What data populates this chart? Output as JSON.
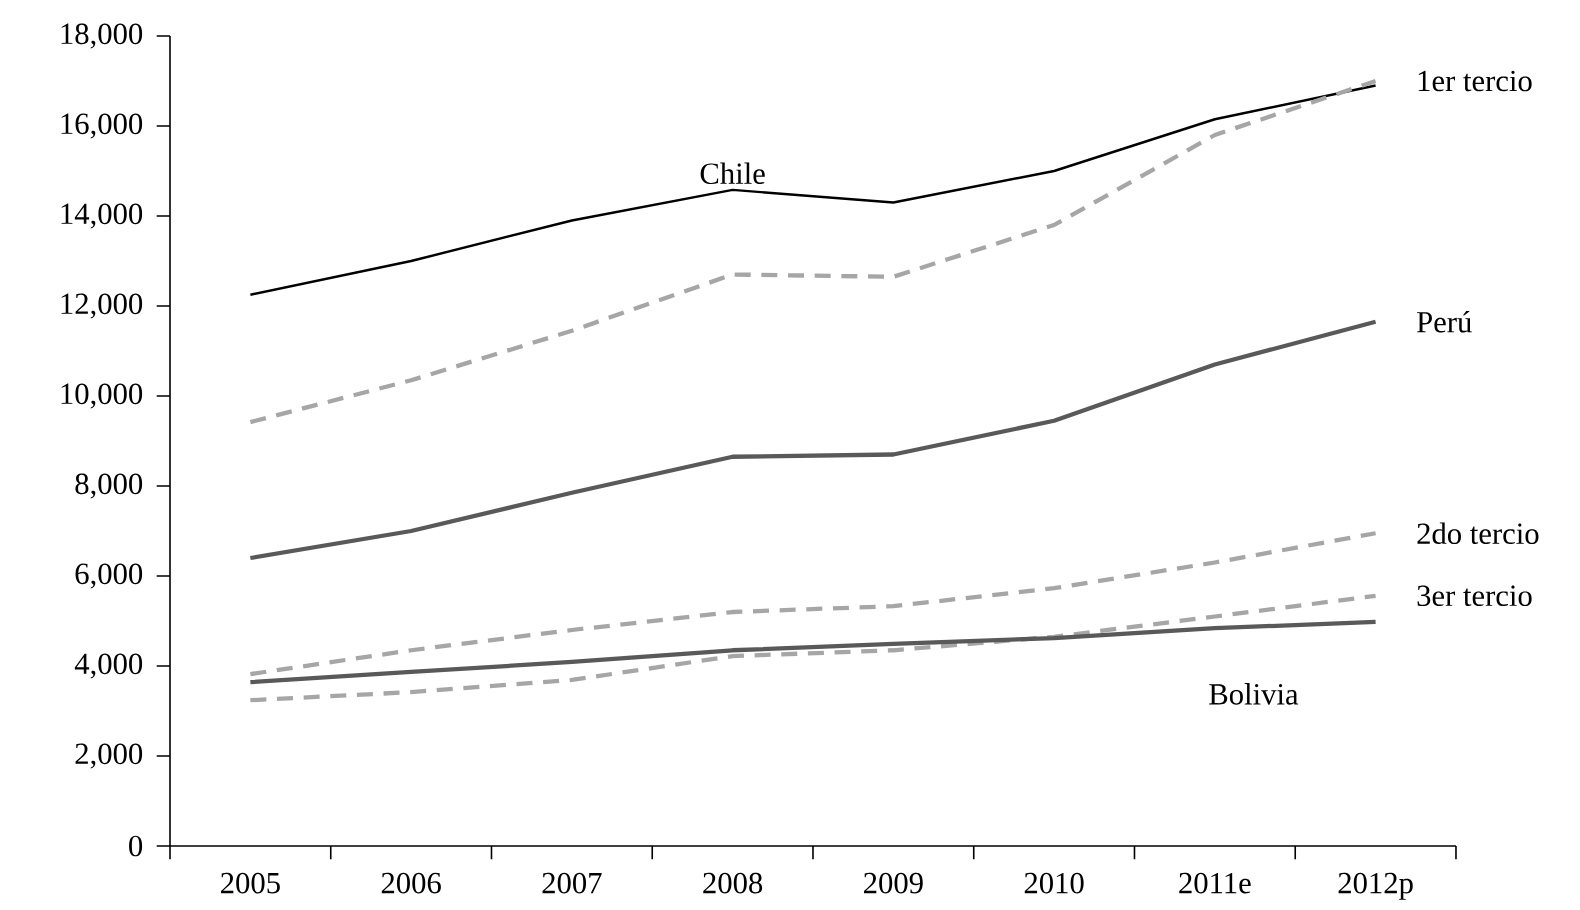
{
  "chart_data": {
    "type": "line",
    "categories": [
      "2005",
      "2006",
      "2007",
      "2008",
      "2009",
      "2010",
      "2011e",
      "2012p"
    ],
    "ylim": [
      0,
      18000
    ],
    "yticks": [
      0,
      {
        "value": 2000,
        "label": "2,000"
      },
      {
        "value": 4000,
        "label": "4,000"
      },
      {
        "value": 6000,
        "label": "6,000"
      },
      {
        "value": 8000,
        "label": "8,000"
      },
      {
        "value": 10000,
        "label": "10,000"
      },
      {
        "value": 12000,
        "label": "12,000"
      },
      {
        "value": 14000,
        "label": "14,000"
      },
      {
        "value": 16000,
        "label": "16,000"
      },
      {
        "value": 18000,
        "label": "18,000"
      }
    ],
    "series": [
      {
        "name": "Chile",
        "color": "#000000",
        "line_style": "solid",
        "values": [
          12250,
          13000,
          13900,
          14580,
          14300,
          15000,
          16150,
          16900
        ]
      },
      {
        "name": "1er tercio",
        "color": "#a6a6a6",
        "line_style": "dashed",
        "values": [
          9420,
          10350,
          11450,
          12700,
          12650,
          13800,
          15800,
          17000
        ]
      },
      {
        "name": "Perú",
        "color": "#595959",
        "line_style": "solid",
        "values": [
          6400,
          7000,
          7850,
          8650,
          8700,
          9450,
          10700,
          11650
        ]
      },
      {
        "name": "2do tercio",
        "color": "#a6a6a6",
        "line_style": "dashed",
        "values": [
          3820,
          4350,
          4800,
          5200,
          5330,
          5730,
          6300,
          6950
        ]
      },
      {
        "name": "3er tercio",
        "color": "#a6a6a6",
        "line_style": "dashed",
        "values": [
          3240,
          3420,
          3690,
          4220,
          4350,
          4650,
          5100,
          5560
        ]
      },
      {
        "name": "Bolivia",
        "color": "#595959",
        "line_style": "solid",
        "values": [
          3640,
          3870,
          4090,
          4350,
          4490,
          4620,
          4840,
          4980
        ]
      }
    ]
  }
}
